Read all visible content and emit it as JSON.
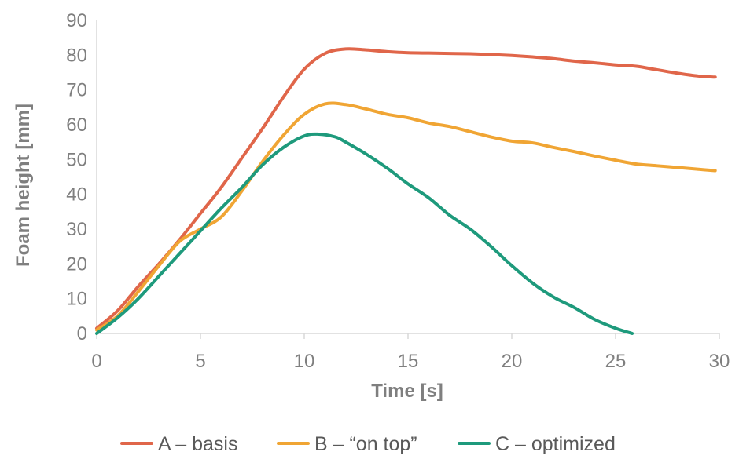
{
  "chart_data": {
    "type": "line",
    "title": "",
    "xlabel": "Time [s]",
    "ylabel": "Foam height [mm]",
    "xlim": [
      0,
      30
    ],
    "ylim": [
      0,
      90
    ],
    "xticks": [
      "0",
      "5",
      "10",
      "15",
      "20",
      "25",
      "30"
    ],
    "yticks": [
      "0",
      "10",
      "20",
      "30",
      "40",
      "50",
      "60",
      "70",
      "80",
      "90"
    ],
    "grid": false,
    "legend_position": "bottom",
    "series": [
      {
        "name": "A – basis",
        "color": "#e0664a",
        "x": [
          0,
          1,
          2,
          3,
          4,
          5,
          6,
          7,
          8,
          9,
          10,
          11,
          12,
          13,
          14,
          15,
          16,
          17,
          18,
          19,
          20,
          21,
          22,
          23,
          24,
          25,
          26,
          27,
          28,
          29,
          29.8
        ],
        "y": [
          1.5,
          6.5,
          13.5,
          20,
          27,
          34.5,
          42,
          50.5,
          59,
          68,
          76,
          80.5,
          81.8,
          81.5,
          81,
          80.7,
          80.6,
          80.5,
          80.4,
          80.2,
          79.9,
          79.5,
          79,
          78.3,
          77.8,
          77.2,
          76.8,
          75.8,
          74.8,
          74,
          73.7
        ]
      },
      {
        "name": "B – “on top”",
        "color": "#f0a534",
        "x": [
          0,
          1,
          2,
          3,
          4,
          5,
          6,
          7,
          8,
          9,
          10,
          11,
          12,
          13,
          14,
          15,
          16,
          17,
          18,
          19,
          20,
          21,
          22,
          23,
          24,
          25,
          26,
          27,
          28,
          29,
          29.8
        ],
        "y": [
          1,
          5,
          12,
          19.5,
          26.5,
          30,
          33.5,
          41,
          49.5,
          57,
          63,
          66,
          65.8,
          64.5,
          63,
          62,
          60.5,
          59.5,
          58,
          56.5,
          55.3,
          54.8,
          53.5,
          52.3,
          51,
          49.8,
          48.7,
          48.2,
          47.7,
          47.2,
          46.8
        ]
      },
      {
        "name": "C – optimized",
        "color": "#1e9a7c",
        "x": [
          0,
          1,
          2,
          3,
          4,
          5,
          6,
          7,
          8,
          9,
          10,
          10.7,
          11.5,
          12,
          13,
          14,
          15,
          16,
          17,
          18,
          19,
          20,
          21,
          22,
          23,
          24,
          25,
          25.8
        ],
        "y": [
          0,
          4.5,
          10,
          16.5,
          23,
          29.5,
          36,
          42,
          48.5,
          53.5,
          56.8,
          57.3,
          56.5,
          55,
          51.5,
          47.5,
          43,
          39,
          34,
          30,
          25,
          19.5,
          14.5,
          10.5,
          7.5,
          4,
          1.5,
          0
        ]
      }
    ]
  }
}
